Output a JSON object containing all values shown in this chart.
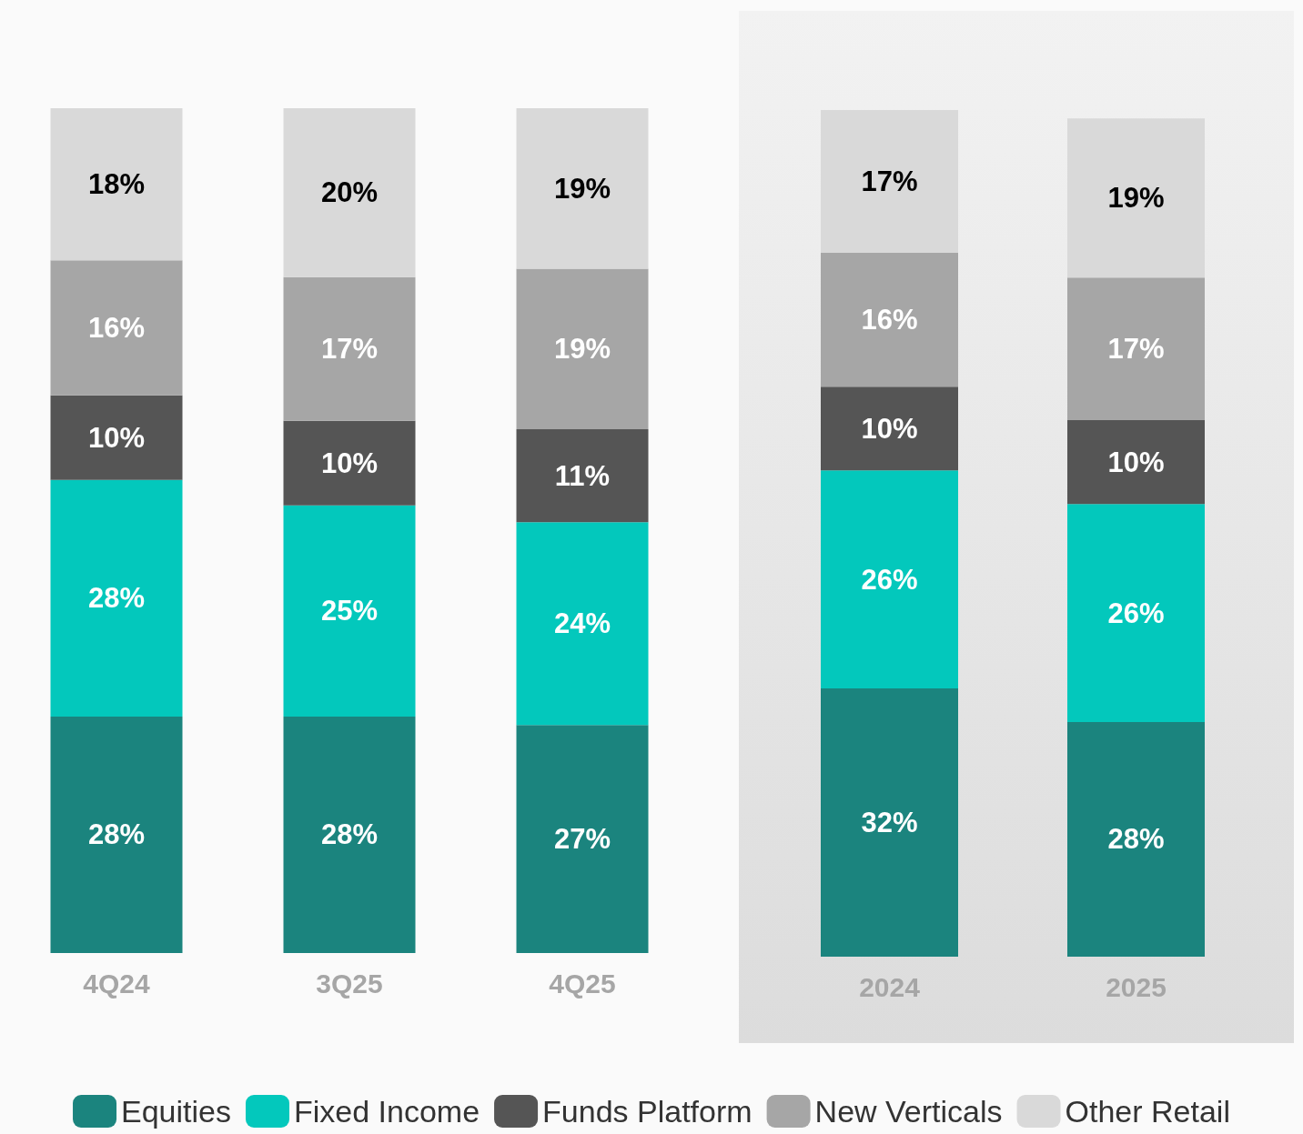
{
  "chart_data": [
    {
      "type": "bar",
      "stacked": true,
      "categories": [
        "4Q24",
        "3Q25",
        "4Q25"
      ],
      "tick_labels": "x",
      "legend": "bottom",
      "series": [
        {
          "name": "Equities",
          "color": "#1b847e",
          "values": [
            28,
            28,
            27
          ],
          "value_labels": [
            "28%",
            "28%",
            "27%"
          ]
        },
        {
          "name": "Fixed Income",
          "color": "#03c8bc",
          "values": [
            28,
            25,
            24
          ],
          "value_labels": [
            "28%",
            "25%",
            "24%"
          ]
        },
        {
          "name": "Funds Platform",
          "color": "#555555",
          "values": [
            10,
            10,
            11
          ],
          "value_labels": [
            "10%",
            "10%",
            "11%"
          ]
        },
        {
          "name": "New Verticals",
          "color": "#a6a6a6",
          "values": [
            16,
            17,
            19
          ],
          "value_labels": [
            "16%",
            "17%",
            "19%"
          ]
        },
        {
          "name": "Other Retail",
          "color": "#d9d9d9",
          "values": [
            18,
            20,
            19
          ],
          "value_labels": [
            "18%",
            "20%",
            "19%"
          ]
        }
      ]
    },
    {
      "type": "bar",
      "stacked": true,
      "categories": [
        "2024",
        "2025"
      ],
      "tick_labels": "x",
      "series": [
        {
          "color": "#1b847e",
          "values": [
            32,
            28
          ],
          "value_labels": [
            "32%",
            "28%"
          ]
        },
        {
          "color": "#03c8bc",
          "values": [
            26,
            26
          ],
          "value_labels": [
            "26%",
            "26%"
          ]
        },
        {
          "color": "#555555",
          "values": [
            10,
            10
          ],
          "value_labels": [
            "10%",
            "10%"
          ]
        },
        {
          "color": "#a6a6a6",
          "values": [
            16,
            17
          ],
          "value_labels": [
            "16%",
            "17%"
          ]
        },
        {
          "color": "#d9d9d9",
          "values": [
            17,
            19
          ],
          "value_labels": [
            "17%",
            "19%"
          ]
        }
      ]
    }
  ]
}
